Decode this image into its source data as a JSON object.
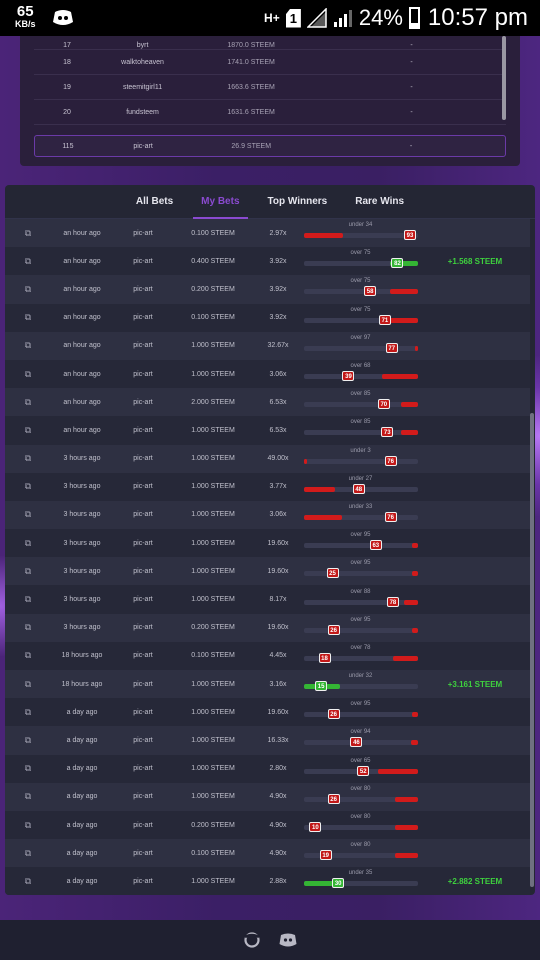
{
  "statusbar": {
    "speed_value": "65",
    "speed_unit": "KB/s",
    "network_type": "H+",
    "sim_slot": "1",
    "battery_percent": "24%",
    "time": "10:57 pm",
    "icons": [
      "discord-notification-icon",
      "signal-empty-icon",
      "signal-icon",
      "battery-charging-icon"
    ]
  },
  "leaderboard": {
    "rows": [
      {
        "rank": "17",
        "user": "byrt",
        "amount": "1870.0 STEEM",
        "extra": "-"
      },
      {
        "rank": "18",
        "user": "walktoheaven",
        "amount": "1741.0 STEEM",
        "extra": "-"
      },
      {
        "rank": "19",
        "user": "steemitgirl11",
        "amount": "1663.6 STEEM",
        "extra": "-"
      },
      {
        "rank": "20",
        "user": "fundsteem",
        "amount": "1631.6 STEEM",
        "extra": "-"
      }
    ],
    "current_user": {
      "rank": "115",
      "user": "pic-art",
      "amount": "26.9 STEEM",
      "extra": "-"
    }
  },
  "tabs": [
    {
      "label": "All Bets",
      "active": false
    },
    {
      "label": "My Bets",
      "active": true
    },
    {
      "label": "Top Winners",
      "active": false
    },
    {
      "label": "Rare Wins",
      "active": false
    }
  ],
  "bets": [
    {
      "time": "an hour ago",
      "user": "pic-art",
      "amount": "0.100 STEEM",
      "multiplier": "2.97x",
      "condition": "under 34",
      "roll": "93",
      "win": false,
      "payout": ""
    },
    {
      "time": "an hour ago",
      "user": "pic-art",
      "amount": "0.400 STEEM",
      "multiplier": "3.92x",
      "condition": "over 75",
      "roll": "82",
      "win": true,
      "payout": "+1.568 STEEM"
    },
    {
      "time": "an hour ago",
      "user": "pic-art",
      "amount": "0.200 STEEM",
      "multiplier": "3.92x",
      "condition": "over 75",
      "roll": "58",
      "win": false,
      "payout": ""
    },
    {
      "time": "an hour ago",
      "user": "pic-art",
      "amount": "0.100 STEEM",
      "multiplier": "3.92x",
      "condition": "over 75",
      "roll": "71",
      "win": false,
      "payout": ""
    },
    {
      "time": "an hour ago",
      "user": "pic-art",
      "amount": "1.000 STEEM",
      "multiplier": "32.67x",
      "condition": "over 97",
      "roll": "77",
      "win": false,
      "payout": ""
    },
    {
      "time": "an hour ago",
      "user": "pic-art",
      "amount": "1.000 STEEM",
      "multiplier": "3.06x",
      "condition": "over 68",
      "roll": "39",
      "win": false,
      "payout": ""
    },
    {
      "time": "an hour ago",
      "user": "pic-art",
      "amount": "2.000 STEEM",
      "multiplier": "6.53x",
      "condition": "over 85",
      "roll": "70",
      "win": false,
      "payout": ""
    },
    {
      "time": "an hour ago",
      "user": "pic-art",
      "amount": "1.000 STEEM",
      "multiplier": "6.53x",
      "condition": "over 85",
      "roll": "73",
      "win": false,
      "payout": ""
    },
    {
      "time": "3 hours ago",
      "user": "pic-art",
      "amount": "1.000 STEEM",
      "multiplier": "49.00x",
      "condition": "under 3",
      "roll": "76",
      "win": false,
      "payout": ""
    },
    {
      "time": "3 hours ago",
      "user": "pic-art",
      "amount": "1.000 STEEM",
      "multiplier": "3.77x",
      "condition": "under 27",
      "roll": "48",
      "win": false,
      "payout": ""
    },
    {
      "time": "3 hours ago",
      "user": "pic-art",
      "amount": "1.000 STEEM",
      "multiplier": "3.06x",
      "condition": "under 33",
      "roll": "76",
      "win": false,
      "payout": ""
    },
    {
      "time": "3 hours ago",
      "user": "pic-art",
      "amount": "1.000 STEEM",
      "multiplier": "19.60x",
      "condition": "over 95",
      "roll": "63",
      "win": false,
      "payout": ""
    },
    {
      "time": "3 hours ago",
      "user": "pic-art",
      "amount": "1.000 STEEM",
      "multiplier": "19.60x",
      "condition": "over 95",
      "roll": "25",
      "win": false,
      "payout": ""
    },
    {
      "time": "3 hours ago",
      "user": "pic-art",
      "amount": "1.000 STEEM",
      "multiplier": "8.17x",
      "condition": "over 88",
      "roll": "78",
      "win": false,
      "payout": ""
    },
    {
      "time": "3 hours ago",
      "user": "pic-art",
      "amount": "0.200 STEEM",
      "multiplier": "19.60x",
      "condition": "over 95",
      "roll": "26",
      "win": false,
      "payout": ""
    },
    {
      "time": "18 hours ago",
      "user": "pic-art",
      "amount": "0.100 STEEM",
      "multiplier": "4.45x",
      "condition": "over 78",
      "roll": "18",
      "win": false,
      "payout": ""
    },
    {
      "time": "18 hours ago",
      "user": "pic-art",
      "amount": "1.000 STEEM",
      "multiplier": "3.16x",
      "condition": "under 32",
      "roll": "15",
      "win": true,
      "payout": "+3.161 STEEM"
    },
    {
      "time": "a day ago",
      "user": "pic-art",
      "amount": "1.000 STEEM",
      "multiplier": "19.60x",
      "condition": "over 95",
      "roll": "26",
      "win": false,
      "payout": ""
    },
    {
      "time": "a day ago",
      "user": "pic-art",
      "amount": "1.000 STEEM",
      "multiplier": "16.33x",
      "condition": "over 94",
      "roll": "46",
      "win": false,
      "payout": ""
    },
    {
      "time": "a day ago",
      "user": "pic-art",
      "amount": "1.000 STEEM",
      "multiplier": "2.80x",
      "condition": "over 65",
      "roll": "52",
      "win": false,
      "payout": ""
    },
    {
      "time": "a day ago",
      "user": "pic-art",
      "amount": "1.000 STEEM",
      "multiplier": "4.90x",
      "condition": "over 80",
      "roll": "26",
      "win": false,
      "payout": ""
    },
    {
      "time": "a day ago",
      "user": "pic-art",
      "amount": "0.200 STEEM",
      "multiplier": "4.90x",
      "condition": "over 80",
      "roll": "10",
      "win": false,
      "payout": ""
    },
    {
      "time": "a day ago",
      "user": "pic-art",
      "amount": "0.100 STEEM",
      "multiplier": "4.90x",
      "condition": "over 80",
      "roll": "19",
      "win": false,
      "payout": ""
    },
    {
      "time": "a day ago",
      "user": "pic-art",
      "amount": "1.000 STEEM",
      "multiplier": "2.88x",
      "condition": "under 35",
      "roll": "30",
      "win": true,
      "payout": "+2.882 STEEM"
    }
  ],
  "footer": {
    "icons": [
      "steem-logo-icon",
      "discord-icon"
    ]
  },
  "colors": {
    "accent": "#8a4ad0",
    "lose": "#d21b1b",
    "win": "#34b534",
    "win_text": "#3ed03e"
  }
}
